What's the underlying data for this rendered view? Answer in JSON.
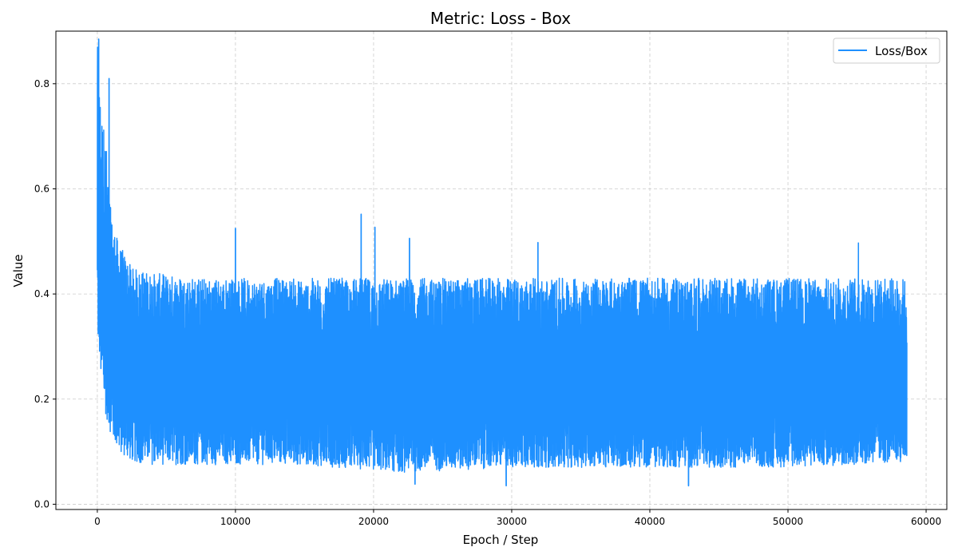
{
  "chart_data": {
    "type": "line",
    "title": "Metric: Loss - Box",
    "xlabel": "Epoch / Step",
    "ylabel": "Value",
    "xlim": [
      -3000,
      61500
    ],
    "ylim": [
      -0.01,
      0.9
    ],
    "x_ticks": [
      0,
      10000,
      20000,
      30000,
      40000,
      50000,
      60000
    ],
    "x_tick_labels": [
      "0",
      "10000",
      "20000",
      "30000",
      "40000",
      "50000",
      "60000"
    ],
    "y_ticks": [
      0.0,
      0.2,
      0.4,
      0.6,
      0.8
    ],
    "y_tick_labels": [
      "0.0",
      "0.2",
      "0.4",
      "0.6",
      "0.8"
    ],
    "grid": true,
    "legend_position": "top-right",
    "series": [
      {
        "name": "Loss/Box",
        "color": "#1e90ff",
        "x_start": 0,
        "x_end": 58600,
        "envelope": {
          "x": [
            0,
            100,
            300,
            600,
            1000,
            1500,
            2500,
            4000,
            8000,
            15000,
            22000,
            30000,
            40000,
            50000,
            58600
          ],
          "low": [
            0.28,
            0.3,
            0.22,
            0.17,
            0.13,
            0.1,
            0.08,
            0.075,
            0.075,
            0.075,
            0.06,
            0.07,
            0.07,
            0.07,
            0.08
          ],
          "mid": [
            0.7,
            0.55,
            0.45,
            0.38,
            0.32,
            0.29,
            0.27,
            0.26,
            0.25,
            0.25,
            0.24,
            0.24,
            0.24,
            0.24,
            0.24
          ],
          "high": [
            0.88,
            0.82,
            0.75,
            0.7,
            0.55,
            0.5,
            0.45,
            0.44,
            0.43,
            0.43,
            0.43,
            0.43,
            0.43,
            0.43,
            0.43
          ]
        },
        "peaks": [
          {
            "x": 100,
            "y": 0.885
          },
          {
            "x": 850,
            "y": 0.81
          },
          {
            "x": 10000,
            "y": 0.525
          },
          {
            "x": 19100,
            "y": 0.552
          },
          {
            "x": 20100,
            "y": 0.527
          },
          {
            "x": 22600,
            "y": 0.506
          },
          {
            "x": 31900,
            "y": 0.498
          },
          {
            "x": 55100,
            "y": 0.497
          }
        ],
        "troughs": [
          {
            "x": 23000,
            "y": 0.038
          },
          {
            "x": 29600,
            "y": 0.035
          },
          {
            "x": 42800,
            "y": 0.035
          }
        ]
      }
    ]
  }
}
